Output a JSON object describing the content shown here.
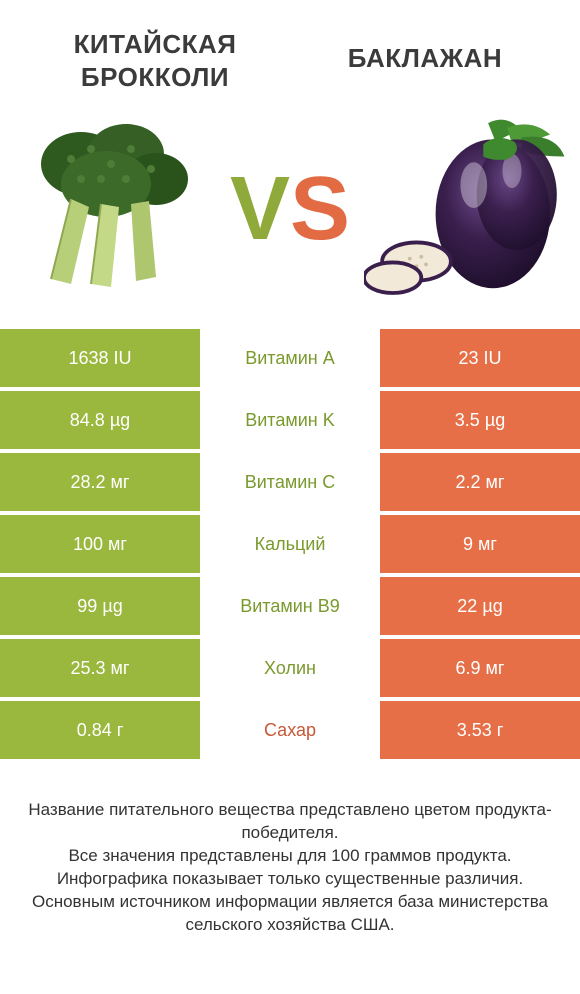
{
  "colors": {
    "left": "#9ab73e",
    "right": "#e76f47",
    "left_text": "#ffffff",
    "right_text": "#ffffff",
    "mid_winner_left": "#7a9a2e",
    "mid_winner_right": "#c95838"
  },
  "titles": {
    "left_line1": "КИТАЙСКАЯ",
    "left_line2": "БРОККОЛИ",
    "right": "БАКЛАЖАН"
  },
  "vs": {
    "v": "V",
    "s": "S"
  },
  "rows": [
    {
      "label": "Витамин A",
      "left": "1638 IU",
      "right": "23 IU",
      "winner": "left"
    },
    {
      "label": "Витамин K",
      "left": "84.8 µg",
      "right": "3.5 µg",
      "winner": "left"
    },
    {
      "label": "Витамин C",
      "left": "28.2 мг",
      "right": "2.2 мг",
      "winner": "left"
    },
    {
      "label": "Кальций",
      "left": "100 мг",
      "right": "9 мг",
      "winner": "left"
    },
    {
      "label": "Витамин B9",
      "left": "99 µg",
      "right": "22 µg",
      "winner": "left"
    },
    {
      "label": "Холин",
      "left": "25.3 мг",
      "right": "6.9 мг",
      "winner": "left"
    },
    {
      "label": "Сахар",
      "left": "0.84 г",
      "right": "3.53 г",
      "winner": "right"
    }
  ],
  "footer": {
    "l1": "Название питательного вещества представлено цветом продукта-победителя.",
    "l2": "Все значения представлены для 100 граммов продукта.",
    "l3": "Инфографика показывает только существенные различия.",
    "l4": "Основным источником информации является база министерства сельского хозяйства США."
  }
}
